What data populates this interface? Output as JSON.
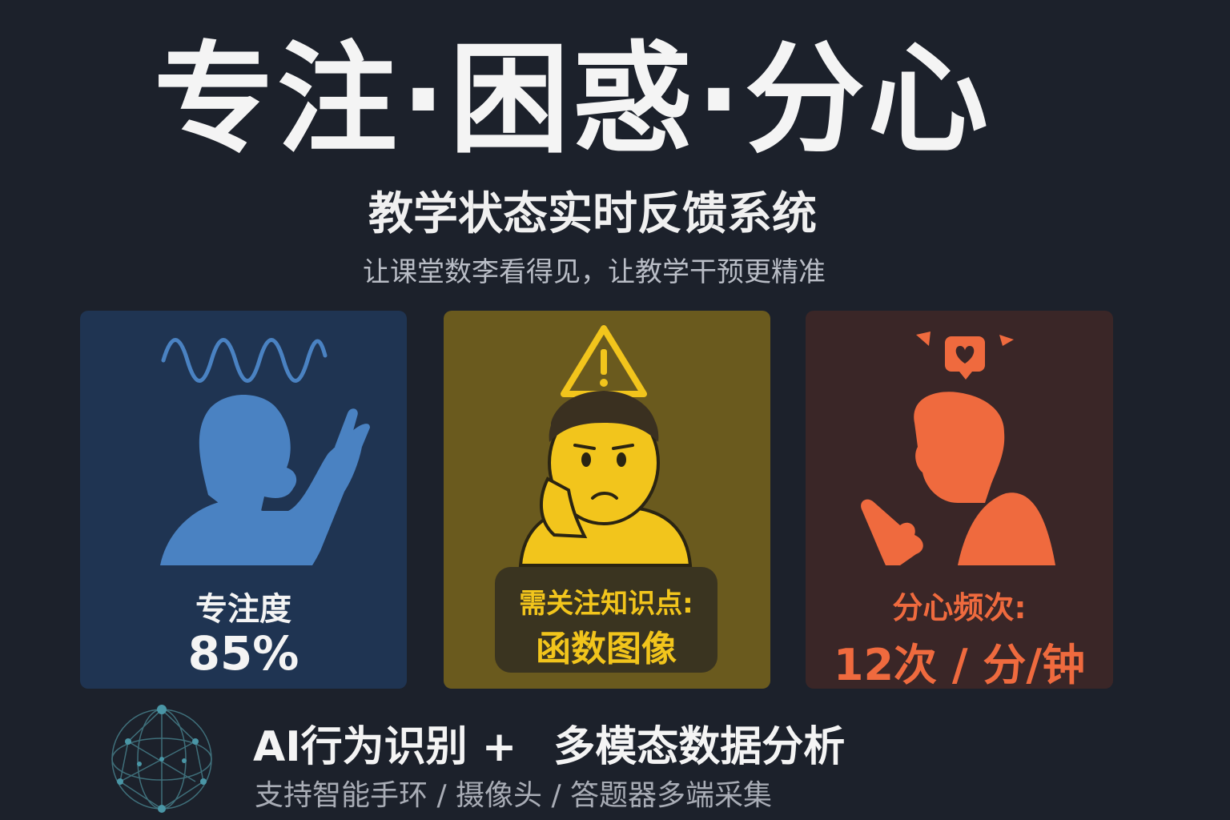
{
  "header": {
    "title": "专注·困惑·分心",
    "subtitle": "教学状态实时反馈系统",
    "tagline": "让课堂数李看得见，让教学干预更精准"
  },
  "cards": {
    "focus": {
      "label": "专注度",
      "value": "85%",
      "color": "#4a82c2"
    },
    "confused": {
      "label": "需关注知识点:",
      "value": "函数图像",
      "color": "#f2c51c"
    },
    "distract": {
      "label": "分心频次:",
      "value": "12次 / 分/钟",
      "color": "#ef6a3e"
    }
  },
  "footer": {
    "main_left": "AI行为识别 +",
    "main_right": "多模态数据分析",
    "sub": "支持智能手环 / 摄像头 / 答题器多端采集"
  },
  "icons": [
    "wave-icon",
    "focused-student-icon",
    "warning-icon",
    "confused-student-icon",
    "distracted-student-icon",
    "heart-notification-icon",
    "network-globe-icon"
  ]
}
